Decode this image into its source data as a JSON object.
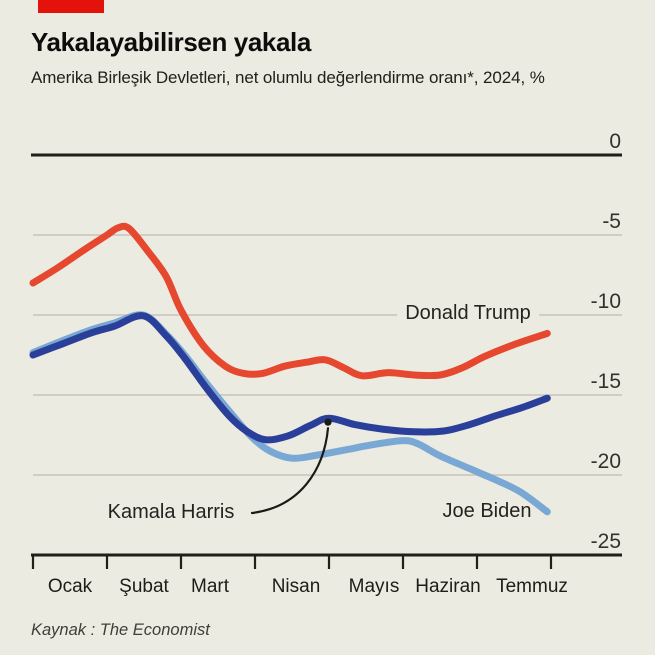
{
  "page": {
    "background": "#ecebe1",
    "tag_color": "#e3120b",
    "source": "Kaynak : The Economist"
  },
  "chart_data": {
    "type": "line",
    "title": "Yakalayabilirsen yakala",
    "subtitle": "Amerika Birleşik Devletleri, net olumlu değerlendirme oranı*, 2024, %",
    "x_unit": "month index, 1 = start of Ocak 2024, 8 = start of Ağustos 2024",
    "x_axis": {
      "tick_labels": [
        "Ocak",
        "Şubat",
        "Mart",
        "Nisan",
        "Mayıs",
        "Haziran",
        "Temmuz"
      ],
      "range_months": [
        1,
        8
      ]
    },
    "y_axis": {
      "ticks": [
        0,
        -5,
        -10,
        -15,
        -20,
        -25
      ],
      "range": [
        -25,
        0
      ],
      "unit": "%"
    },
    "grid": "horizontal-only",
    "legend": "inline-labels-on-chart",
    "series": [
      {
        "name": "Donald Trump",
        "color": "#e6472f",
        "points": [
          [
            1.0,
            -8.0
          ],
          [
            1.35,
            -7.0
          ],
          [
            1.7,
            -5.9
          ],
          [
            2.0,
            -5.0
          ],
          [
            2.15,
            -4.55
          ],
          [
            2.3,
            -4.6
          ],
          [
            2.55,
            -6.0
          ],
          [
            2.8,
            -7.6
          ],
          [
            3.0,
            -9.7
          ],
          [
            3.3,
            -11.9
          ],
          [
            3.6,
            -13.2
          ],
          [
            3.85,
            -13.65
          ],
          [
            4.1,
            -13.65
          ],
          [
            4.4,
            -13.2
          ],
          [
            4.7,
            -12.95
          ],
          [
            4.95,
            -12.8
          ],
          [
            5.2,
            -13.3
          ],
          [
            5.45,
            -13.8
          ],
          [
            5.8,
            -13.6
          ],
          [
            6.15,
            -13.75
          ],
          [
            6.5,
            -13.75
          ],
          [
            6.8,
            -13.3
          ],
          [
            7.1,
            -12.6
          ],
          [
            7.5,
            -11.85
          ],
          [
            7.95,
            -11.15
          ]
        ]
      },
      {
        "name": "Kamala Harris",
        "color": "#2a3f9a",
        "points": [
          [
            1.0,
            -12.5
          ],
          [
            1.4,
            -11.8
          ],
          [
            1.8,
            -11.1
          ],
          [
            2.1,
            -10.7
          ],
          [
            2.49,
            -10.05
          ],
          [
            2.8,
            -11.3
          ],
          [
            3.05,
            -12.7
          ],
          [
            3.35,
            -14.6
          ],
          [
            3.65,
            -16.3
          ],
          [
            3.9,
            -17.3
          ],
          [
            4.15,
            -17.8
          ],
          [
            4.45,
            -17.55
          ],
          [
            4.75,
            -16.9
          ],
          [
            5.0,
            -16.45
          ],
          [
            5.35,
            -16.85
          ],
          [
            5.75,
            -17.15
          ],
          [
            6.15,
            -17.3
          ],
          [
            6.55,
            -17.25
          ],
          [
            6.9,
            -16.85
          ],
          [
            7.25,
            -16.3
          ],
          [
            7.6,
            -15.8
          ],
          [
            7.95,
            -15.2
          ]
        ]
      },
      {
        "name": "Joe Biden",
        "color": "#7aa8d4",
        "points": [
          [
            1.0,
            -12.35
          ],
          [
            1.4,
            -11.6
          ],
          [
            1.8,
            -10.9
          ],
          [
            2.1,
            -10.5
          ],
          [
            2.49,
            -10.0
          ],
          [
            2.8,
            -11.2
          ],
          [
            3.05,
            -12.5
          ],
          [
            3.35,
            -14.3
          ],
          [
            3.65,
            -16.0
          ],
          [
            3.95,
            -17.6
          ],
          [
            4.2,
            -18.5
          ],
          [
            4.5,
            -18.95
          ],
          [
            4.85,
            -18.75
          ],
          [
            5.2,
            -18.45
          ],
          [
            5.6,
            -18.1
          ],
          [
            6.0,
            -17.85
          ],
          [
            6.2,
            -18.05
          ],
          [
            6.5,
            -18.8
          ],
          [
            6.9,
            -19.6
          ],
          [
            7.3,
            -20.4
          ],
          [
            7.6,
            -21.1
          ],
          [
            7.95,
            -22.3
          ]
        ]
      }
    ],
    "callout": {
      "label": "Kamala Harris",
      "points_to_month": 5.0
    }
  }
}
